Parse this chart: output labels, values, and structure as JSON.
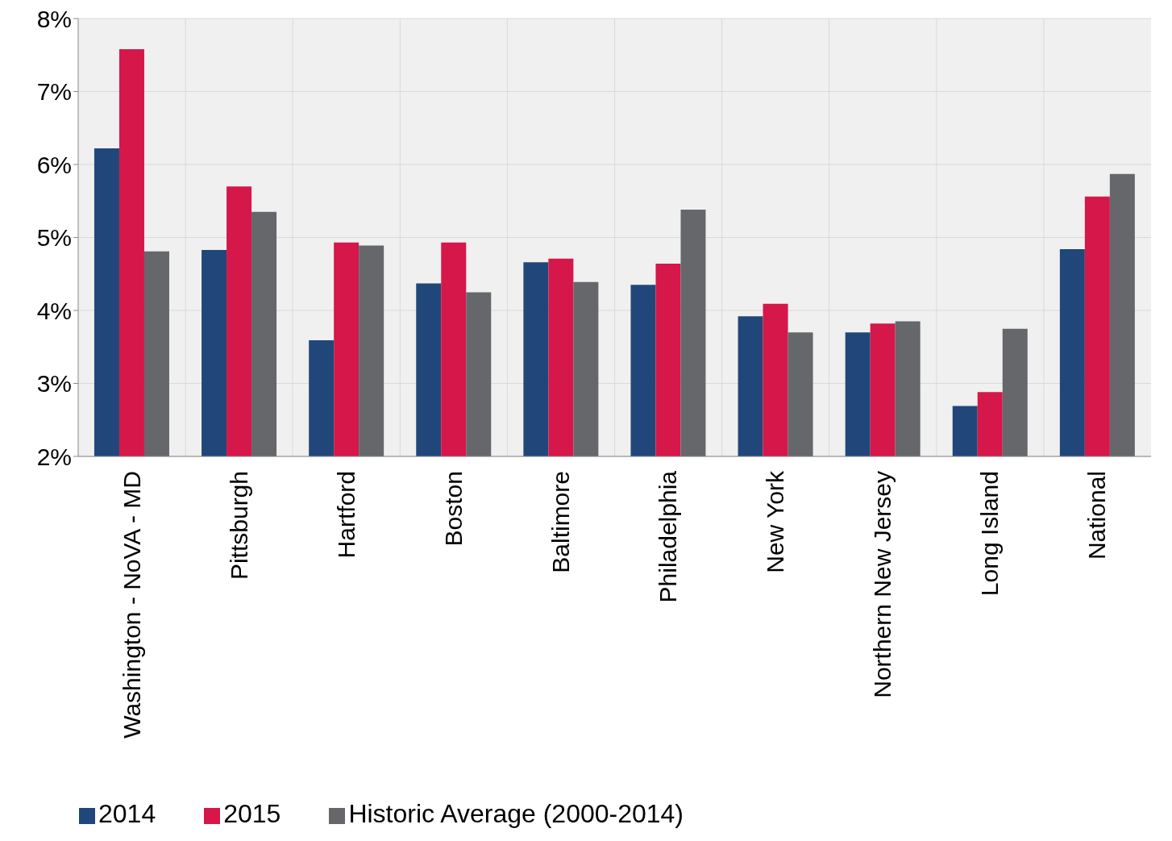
{
  "chart_data": {
    "type": "bar",
    "categories": [
      "Washington - NoVA - MD",
      "Pittsburgh",
      "Hartford",
      "Boston",
      "Baltimore",
      "Philadelphia",
      "New York",
      "Northern New Jersey",
      "Long Island",
      "National"
    ],
    "series": [
      {
        "name": "2014",
        "color": "#21477a",
        "values": [
          6.22,
          4.83,
          3.59,
          4.37,
          4.66,
          4.35,
          3.92,
          3.7,
          2.69,
          4.84
        ]
      },
      {
        "name": "2015",
        "color": "#d5174a",
        "values": [
          7.58,
          5.7,
          4.93,
          4.93,
          4.71,
          4.64,
          4.09,
          3.82,
          2.88,
          5.56
        ]
      },
      {
        "name": "Historic Average (2000-2014)",
        "color": "#65676b",
        "values": [
          4.81,
          5.35,
          4.89,
          4.25,
          4.39,
          5.38,
          3.7,
          3.85,
          3.75,
          5.87
        ]
      }
    ],
    "ylim": [
      2,
      8
    ],
    "yticks": [
      {
        "value": 2,
        "label": "2%"
      },
      {
        "value": 3,
        "label": "3%"
      },
      {
        "value": 4,
        "label": "4%"
      },
      {
        "value": 5,
        "label": "5%"
      },
      {
        "value": 6,
        "label": "6%"
      },
      {
        "value": 7,
        "label": "7%"
      },
      {
        "value": 8,
        "label": "8%"
      }
    ],
    "grid": true,
    "legend": "bottom left"
  }
}
